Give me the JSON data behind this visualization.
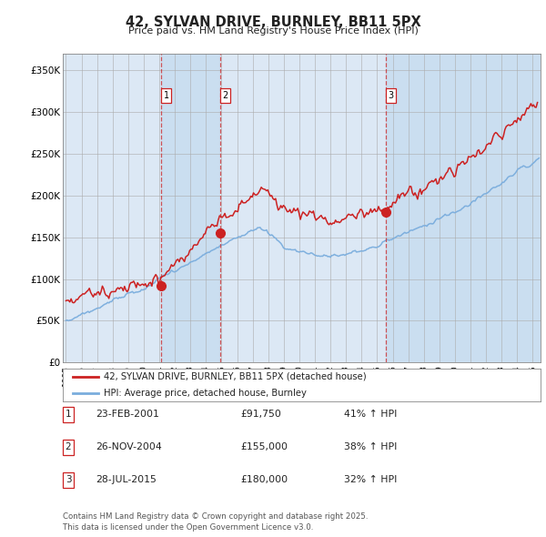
{
  "title": "42, SYLVAN DRIVE, BURNLEY, BB11 5PX",
  "subtitle": "Price paid vs. HM Land Registry's House Price Index (HPI)",
  "ylabel_ticks": [
    "£0",
    "£50K",
    "£100K",
    "£150K",
    "£200K",
    "£250K",
    "£300K",
    "£350K"
  ],
  "ytick_values": [
    0,
    50000,
    100000,
    150000,
    200000,
    250000,
    300000,
    350000
  ],
  "ylim": [
    0,
    370000
  ],
  "xlim_start": 1994.8,
  "xlim_end": 2025.5,
  "legend_line1": "42, SYLVAN DRIVE, BURNLEY, BB11 5PX (detached house)",
  "legend_line2": "HPI: Average price, detached house, Burnley",
  "table_rows": [
    {
      "num": "1",
      "date": "23-FEB-2001",
      "price": "£91,750",
      "change": "41% ↑ HPI"
    },
    {
      "num": "2",
      "date": "26-NOV-2004",
      "price": "£155,000",
      "change": "38% ↑ HPI"
    },
    {
      "num": "3",
      "date": "28-JUL-2015",
      "price": "£180,000",
      "change": "32% ↑ HPI"
    }
  ],
  "footnote1": "Contains HM Land Registry data © Crown copyright and database right 2025.",
  "footnote2": "This data is licensed under the Open Government Licence v3.0.",
  "sale1_x": 2001.12,
  "sale2_x": 2004.9,
  "sale3_x": 2015.55,
  "sale1_y": 91750,
  "sale2_y": 155000,
  "sale3_y": 180000,
  "house_color": "#cc2222",
  "hpi_color": "#7aaddd",
  "plot_bg": "#dce8f5",
  "shade_color": "#c8ddf0",
  "fig_bg": "#ffffff"
}
